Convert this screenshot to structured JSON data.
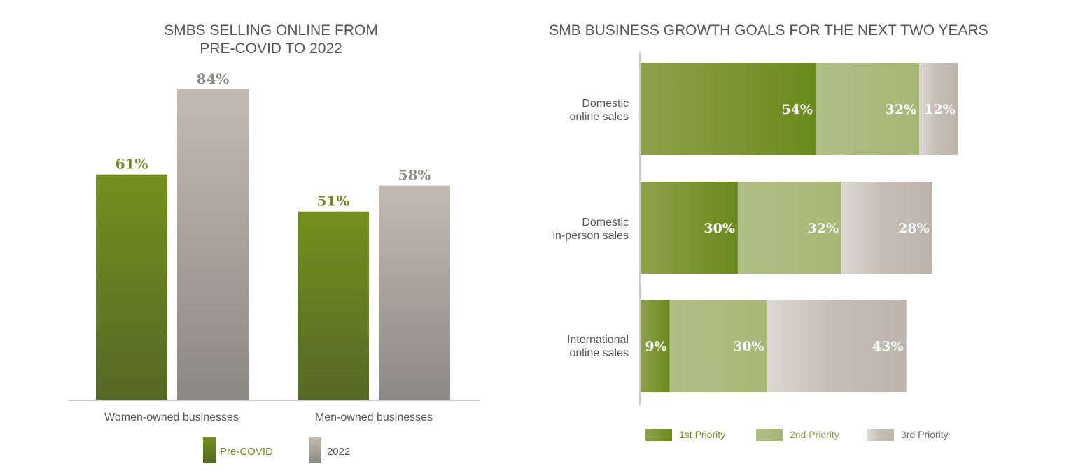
{
  "colors": {
    "green_dark": "#556b22",
    "green_mid": "#6f8a20",
    "green_light": "#a9b97a",
    "gray_dark": "#8f8b86",
    "gray_light": "#c4bcb2",
    "text_gray": "#555555",
    "axis": "#cccccc"
  },
  "chart_data": [
    {
      "type": "bar",
      "title": "SMBS SELLING ONLINE FROM PRE-COVID TO 2022",
      "title_lines": [
        "SMBS SELLING ONLINE FROM",
        "PRE-COVID TO 2022"
      ],
      "categories": [
        "Women-owned businesses",
        "Men-owned businesses"
      ],
      "series": [
        {
          "name": "Pre-COVID",
          "values": [
            61,
            51
          ],
          "labels": [
            "61%",
            "51%"
          ]
        },
        {
          "name": "2022",
          "values": [
            84,
            58
          ],
          "labels": [
            "84%",
            "58%"
          ]
        }
      ],
      "ylim": [
        0,
        100
      ],
      "legend": [
        "Pre-COVID",
        "2022"
      ],
      "legend_position": "bottom"
    },
    {
      "type": "bar",
      "orientation": "horizontal-stacked",
      "title": "SMB BUSINESS GROWTH GOALS FOR THE NEXT TWO YEARS",
      "categories": [
        {
          "line1": "Domestic",
          "line2": "online sales"
        },
        {
          "line1": "Domestic",
          "line2": "in-person sales"
        },
        {
          "line1": "International",
          "line2": "online sales"
        }
      ],
      "series": [
        {
          "name": "1st Priority",
          "values": [
            54,
            30,
            9
          ],
          "labels": [
            "54%",
            "30%",
            "9%"
          ]
        },
        {
          "name": "2nd Priority",
          "values": [
            32,
            32,
            30
          ],
          "labels": [
            "32%",
            "32%",
            "30%"
          ]
        },
        {
          "name": "3rd Priority",
          "values": [
            12,
            28,
            43
          ],
          "labels": [
            "12%",
            "28%",
            "43%"
          ]
        }
      ],
      "xlim": [
        0,
        100
      ],
      "legend": [
        "1st Priority",
        "2nd Priority",
        "3rd Priority"
      ],
      "legend_position": "bottom"
    }
  ]
}
